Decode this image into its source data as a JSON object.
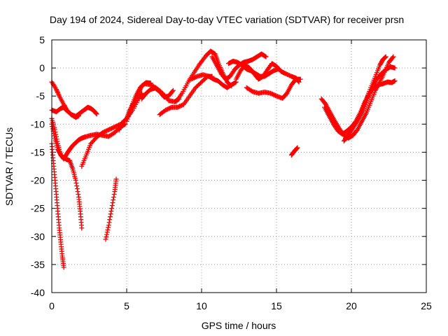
{
  "chart_data": {
    "type": "scatter",
    "title": "Day 194 of 2024, Sidereal Day-to-day VTEC variation (SDTVAR) for receiver prsn",
    "xlabel": "GPS time / hours",
    "ylabel": "SDTVAR / TECUs",
    "xlim": [
      0,
      25
    ],
    "ylim": [
      -40,
      5
    ],
    "xticks": [
      0,
      5,
      10,
      15,
      20,
      25
    ],
    "yticks": [
      5,
      0,
      -5,
      -10,
      -15,
      -20,
      -25,
      -30,
      -35,
      -40
    ],
    "grid": true,
    "marker": "+",
    "series_color": "#ff0000",
    "series": [
      {
        "x": [
          0.0,
          0.3,
          0.5,
          0.8,
          1.0,
          1.3,
          1.6,
          1.8
        ],
        "y": [
          -2.5,
          -3.8,
          -5.0,
          -6.5,
          -7.5,
          -8.3,
          -8.8,
          -8.5
        ]
      },
      {
        "x": [
          0.0,
          0.3,
          0.6,
          0.8,
          1.0,
          1.3,
          1.6,
          1.9,
          2.2,
          2.4,
          2.6,
          2.8,
          3.0
        ],
        "y": [
          -7.5,
          -7.8,
          -7.2,
          -7.0,
          -7.6,
          -8.3,
          -8.6,
          -8.0,
          -7.4,
          -7.0,
          -7.2,
          -7.6,
          -8.2
        ]
      },
      {
        "x": [
          0.0,
          0.2,
          0.4,
          0.6,
          0.8,
          1.0,
          1.2,
          1.4,
          1.6,
          1.8,
          2.0,
          2.2
        ],
        "y": [
          -9.0,
          -11.0,
          -13.5,
          -15.5,
          -16.2,
          -15.3,
          -14.5,
          -13.8,
          -13.3,
          -12.8,
          -12.5,
          -12.3
        ]
      },
      {
        "x": [
          0.0,
          0.1,
          0.2,
          0.3,
          0.4,
          0.5,
          0.6,
          0.7,
          0.8
        ],
        "y": [
          -13.5,
          -16.5,
          -19.5,
          -22.5,
          -25.5,
          -28.5,
          -31.0,
          -33.5,
          -35.5
        ]
      },
      {
        "x": [
          0.0,
          0.2,
          0.4,
          0.6,
          0.8,
          1.0,
          1.2
        ],
        "y": [
          -10.0,
          -12.5,
          -14.5,
          -15.5,
          -16.0,
          -16.3,
          -16.5
        ]
      },
      {
        "x": [
          1.2,
          1.4,
          1.6,
          1.8,
          1.9,
          2.0
        ],
        "y": [
          -16.5,
          -18.0,
          -20.0,
          -23.0,
          -25.5,
          -28.5
        ]
      },
      {
        "x": [
          2.0,
          2.3,
          2.6,
          3.0,
          3.4,
          3.8,
          4.2,
          4.6,
          5.0,
          5.4,
          5.8,
          6.0
        ],
        "y": [
          -17.5,
          -15.5,
          -13.5,
          -12.3,
          -11.5,
          -11.0,
          -10.5,
          -10.0,
          -9.0,
          -7.5,
          -5.5,
          -4.5
        ]
      },
      {
        "x": [
          2.2,
          2.6,
          3.0,
          3.4,
          3.8,
          4.2,
          4.6,
          4.9
        ],
        "y": [
          -12.3,
          -12.0,
          -11.8,
          -12.0,
          -12.2,
          -11.5,
          -10.5,
          -10.0
        ]
      },
      {
        "x": [
          3.6,
          3.8,
          4.0,
          4.2,
          4.3
        ],
        "y": [
          -30.5,
          -28.0,
          -25.0,
          -22.0,
          -19.8
        ]
      },
      {
        "x": [
          4.5,
          4.8,
          5.0,
          5.2,
          5.5,
          5.8,
          6.0,
          6.3,
          6.6
        ],
        "y": [
          -11.0,
          -9.5,
          -9.0,
          -7.5,
          -6.0,
          -4.3,
          -3.2,
          -2.6,
          -2.7
        ]
      },
      {
        "x": [
          5.0,
          5.3,
          5.6,
          5.9,
          6.2,
          6.6,
          7.0,
          7.4,
          7.8,
          8.2,
          8.5
        ],
        "y": [
          -9.5,
          -7.0,
          -5.0,
          -3.5,
          -2.8,
          -3.0,
          -3.6,
          -4.5,
          -5.8,
          -6.0,
          -5.5
        ]
      },
      {
        "x": [
          6.0,
          6.3,
          6.6,
          6.9,
          7.2,
          7.5,
          7.8,
          8.1
        ],
        "y": [
          -5.5,
          -4.5,
          -3.8,
          -3.6,
          -4.2,
          -5.2,
          -5.0,
          -4.0
        ]
      },
      {
        "x": [
          7.2,
          7.6,
          8.0,
          8.4,
          8.8,
          9.2,
          9.6,
          10.0,
          10.4,
          10.7
        ],
        "y": [
          -8.3,
          -7.5,
          -7.0,
          -7.0,
          -6.5,
          -5.0,
          -3.5,
          -2.5,
          -1.5,
          -1.5
        ]
      },
      {
        "x": [
          8.3,
          8.7,
          9.1,
          9.5,
          9.9,
          10.3,
          10.6,
          10.9,
          11.1,
          11.4,
          11.7,
          12.0
        ],
        "y": [
          -6.0,
          -4.5,
          -2.5,
          -0.8,
          0.8,
          2.2,
          3.0,
          2.5,
          1.0,
          -0.8,
          -2.5,
          -3.2
        ]
      },
      {
        "x": [
          9.3,
          9.7,
          10.1,
          10.5,
          10.8,
          11.1,
          11.4,
          11.7,
          12.0,
          12.3
        ],
        "y": [
          -2.0,
          -1.5,
          -1.2,
          -1.5,
          -2.0,
          -2.3,
          -3.0,
          -3.5,
          -3.0,
          -2.5
        ]
      },
      {
        "x": [
          10.7,
          11.0,
          11.3,
          11.6,
          11.9,
          12.2,
          12.5,
          12.8,
          13.1,
          13.4,
          13.7,
          14.0,
          14.3
        ],
        "y": [
          2.0,
          0.5,
          -1.0,
          -2.0,
          -1.5,
          -0.3,
          0.5,
          1.0,
          1.2,
          1.5,
          2.0,
          2.5,
          2.0
        ]
      },
      {
        "x": [
          11.8,
          12.1,
          12.4,
          12.7,
          13.0,
          13.3,
          13.6,
          13.9,
          14.2,
          14.5,
          14.8,
          15.1
        ],
        "y": [
          0.8,
          1.2,
          1.0,
          0.5,
          -0.2,
          -0.5,
          -1.0,
          -1.5,
          -1.5,
          -1.0,
          -0.5,
          -0.2
        ]
      },
      {
        "x": [
          12.3,
          12.6,
          12.9,
          13.2,
          13.5,
          13.8,
          14.1,
          14.4,
          14.7,
          15.0,
          15.3,
          15.6,
          16.0,
          16.3,
          16.5
        ],
        "y": [
          -2.0,
          -0.5,
          0.5,
          0.0,
          -1.0,
          -2.0,
          -1.5,
          -0.3,
          0.8,
          0.3,
          -0.6,
          -1.0,
          -1.5,
          -1.8,
          -2.5
        ]
      },
      {
        "x": [
          13.0,
          13.4,
          13.8,
          14.2,
          14.6,
          15.0,
          15.4,
          15.7,
          16.0,
          16.3,
          16.6
        ],
        "y": [
          -3.5,
          -4.2,
          -4.5,
          -4.3,
          -4.5,
          -5.0,
          -5.4,
          -4.5,
          -3.0,
          -2.0,
          -2.0
        ]
      },
      {
        "x": [
          16.0,
          16.2,
          16.4
        ],
        "y": [
          -15.5,
          -14.8,
          -14.2
        ]
      },
      {
        "x": [
          18.0,
          18.3,
          18.6,
          18.9,
          19.2,
          19.5,
          19.8,
          20.1,
          20.4,
          20.7,
          21.0,
          21.3,
          21.6,
          21.9,
          22.2,
          22.5,
          22.8
        ],
        "y": [
          -5.5,
          -6.5,
          -8.0,
          -9.5,
          -10.8,
          -12.0,
          -12.5,
          -12.0,
          -11.0,
          -9.5,
          -8.0,
          -6.0,
          -4.0,
          -2.5,
          -0.8,
          1.0,
          2.0
        ]
      },
      {
        "x": [
          18.2,
          18.5,
          18.8,
          19.1,
          19.4,
          19.7,
          20.0,
          20.3,
          20.6,
          20.9,
          21.2,
          21.5,
          21.8,
          22.1,
          22.4,
          22.7,
          22.9
        ],
        "y": [
          -7.0,
          -8.5,
          -10.0,
          -11.2,
          -11.8,
          -11.2,
          -10.5,
          -9.5,
          -8.0,
          -6.0,
          -4.5,
          -3.5,
          -3.0,
          -2.8,
          -2.5,
          -2.6,
          -2.3
        ]
      },
      {
        "x": [
          19.5,
          19.8,
          20.1,
          20.4,
          20.7,
          21.0,
          21.3,
          21.6,
          21.9,
          22.1,
          22.3
        ],
        "y": [
          -13.0,
          -12.0,
          -10.5,
          -9.0,
          -7.5,
          -5.5,
          -3.5,
          -1.5,
          0.5,
          1.5,
          2.0
        ]
      },
      {
        "x": [
          19.6,
          19.9,
          20.2,
          20.5,
          20.8,
          21.1,
          21.4,
          21.7,
          22.0,
          22.3,
          22.6,
          22.9
        ],
        "y": [
          -12.5,
          -11.5,
          -10.3,
          -9.0,
          -7.5,
          -5.5,
          -3.5,
          -2.0,
          -1.0,
          -0.3,
          0.2,
          0.0
        ]
      }
    ]
  }
}
